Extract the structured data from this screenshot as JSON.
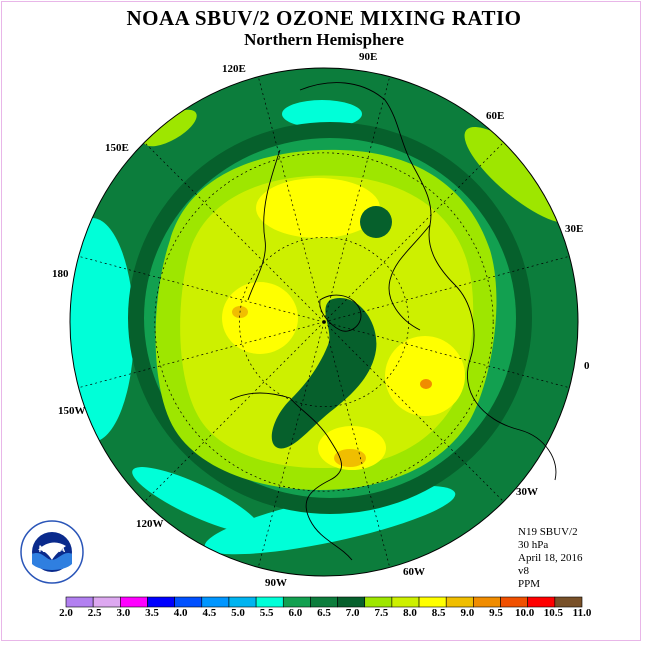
{
  "title": "NOAA SBUV/2 OZONE MIXING RATIO",
  "subtitle": "Northern Hemisphere",
  "longitude_labels": {
    "l90e": "90E",
    "l60e": "60E",
    "l30e": "30E",
    "l0": "0",
    "l30w": "30W",
    "l60w": "60W",
    "l90w": "90W",
    "l120w": "120W",
    "l150w": "150W",
    "l180": "180",
    "l150e": "150E",
    "l120e": "120E"
  },
  "info": {
    "instrument": "N19 SBUV/2",
    "level": "30 hPa",
    "date": "April 18, 2016",
    "version": "v8",
    "units": "PPM"
  },
  "logo": {
    "text": "NOAA",
    "icon": "noaa-logo"
  },
  "colorbar": {
    "labels": [
      "2.0",
      "2.5",
      "3.0",
      "3.5",
      "4.0",
      "4.5",
      "5.0",
      "5.5",
      "6.0",
      "6.5",
      "7.0",
      "7.5",
      "8.0",
      "8.5",
      "9.0",
      "9.5",
      "10.0",
      "10.5",
      "11.0"
    ],
    "colors": [
      "#b280f0",
      "#dda8f0",
      "#ff00ff",
      "#0000ff",
      "#0050ff",
      "#0096ff",
      "#00b4f0",
      "#00ffd8",
      "#12a050",
      "#0c7d3c",
      "#06602c",
      "#9ee600",
      "#cdf000",
      "#ffff00",
      "#f0be00",
      "#f08c00",
      "#f05000",
      "#ff0000",
      "#785028"
    ]
  },
  "map_levels": {
    "outer": "#0c7d3c",
    "dark_band": "#06602c",
    "ring_mid": "#12a050",
    "cyan": "#00ffd8",
    "lime": "#9ee600",
    "yellowgreen": "#cdf000",
    "yellow": "#ffff00",
    "orange": "#f0be00",
    "dark_orange": "#f08c00"
  }
}
